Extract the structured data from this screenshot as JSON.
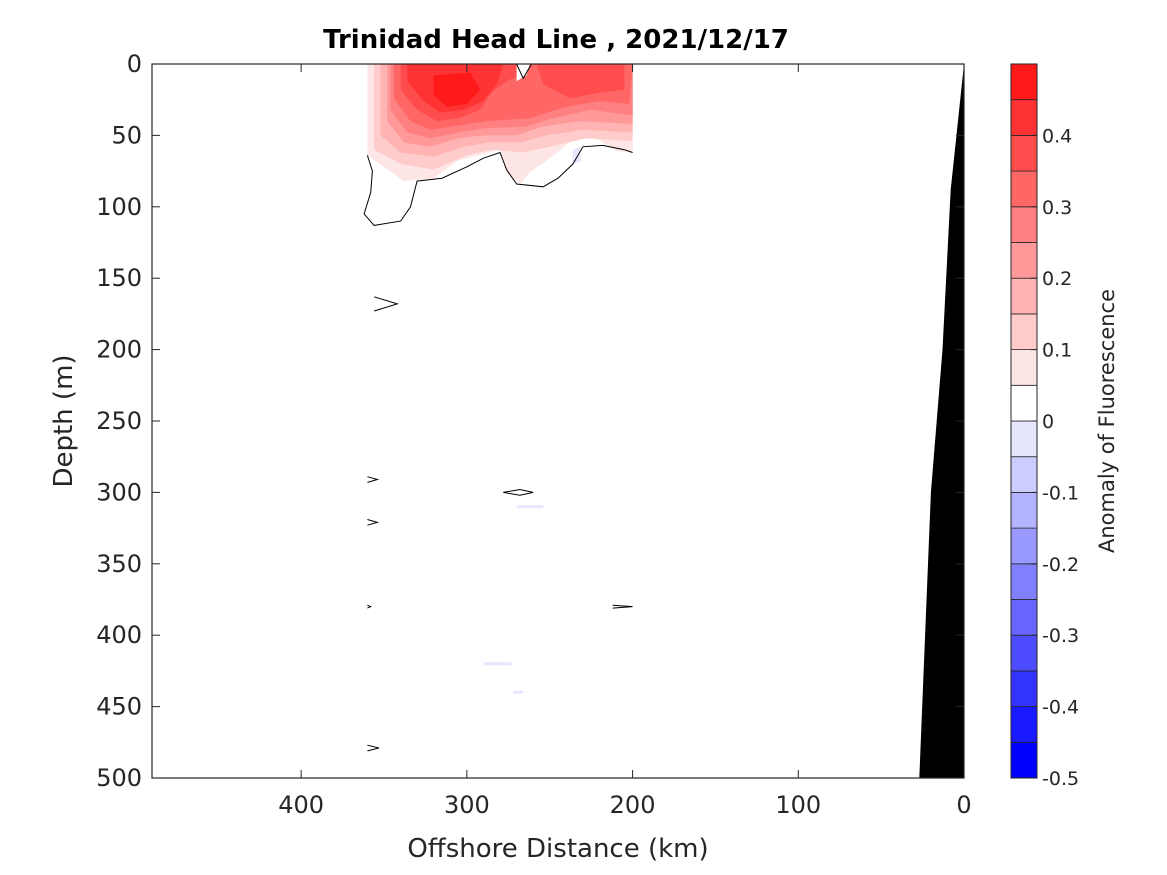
{
  "chart_data": {
    "type": "heatmap",
    "title": "Trinidad Head Line , 2021/12/17",
    "xlabel": "Offshore Distance (km)",
    "ylabel": "Depth (m)",
    "xlim": [
      490,
      0
    ],
    "ylim": [
      500,
      0
    ],
    "x_ticks": [
      400,
      300,
      200,
      100,
      0
    ],
    "y_ticks": [
      0,
      50,
      100,
      150,
      200,
      250,
      300,
      350,
      400,
      450,
      500
    ],
    "data_extent": {
      "x": [
        360,
        200
      ],
      "y": [
        0,
        65
      ]
    },
    "colorbar": {
      "label": "Anomaly of Fluorescence",
      "limits": [
        -0.5,
        0.5
      ],
      "step": 0.05,
      "ticks": [
        -0.5,
        -0.4,
        -0.3,
        -0.2,
        -0.1,
        0,
        0.1,
        0.2,
        0.3,
        0.4
      ],
      "tick_labels": [
        "-0.5",
        "-0.4",
        "-0.3",
        "-0.2",
        "-0.1",
        "0",
        "0.1",
        "0.2",
        "0.3",
        "0.4"
      ],
      "colors": [
        "#0000ff",
        "#1a1aff",
        "#3333ff",
        "#4d4dff",
        "#6666ff",
        "#8080ff",
        "#9999ff",
        "#b3b3ff",
        "#ccccff",
        "#e6e6ff",
        "#ffffff",
        "#ffe6e6",
        "#ffcccc",
        "#ffb3b3",
        "#ff9999",
        "#ff8080",
        "#ff6666",
        "#ff4d4d",
        "#ff3333",
        "#ff1a1a"
      ]
    },
    "anomaly_patches": [
      {
        "level": 0.05,
        "points": [
          [
            360,
            0
          ],
          [
            200,
            0
          ],
          [
            200,
            62
          ],
          [
            210,
            61
          ],
          [
            222,
            52
          ],
          [
            236,
            53
          ],
          [
            250,
            66
          ],
          [
            262,
            76
          ],
          [
            268,
            84
          ],
          [
            276,
            77
          ],
          [
            280,
            60
          ],
          [
            290,
            63
          ],
          [
            306,
            68
          ],
          [
            320,
            80
          ],
          [
            338,
            82
          ],
          [
            360,
            64
          ]
        ]
      },
      {
        "level": 0.1,
        "points": [
          [
            356,
            0
          ],
          [
            200,
            0
          ],
          [
            200,
            54
          ],
          [
            228,
            52
          ],
          [
            250,
            58
          ],
          [
            266,
            62
          ],
          [
            285,
            60
          ],
          [
            300,
            64
          ],
          [
            320,
            74
          ],
          [
            340,
            70
          ],
          [
            356,
            60
          ]
        ]
      },
      {
        "level": 0.15,
        "points": [
          [
            352,
            0
          ],
          [
            200,
            0
          ],
          [
            200,
            48
          ],
          [
            230,
            46
          ],
          [
            252,
            50
          ],
          [
            268,
            55
          ],
          [
            287,
            55
          ],
          [
            302,
            58
          ],
          [
            320,
            65
          ],
          [
            340,
            62
          ],
          [
            352,
            50
          ]
        ]
      },
      {
        "level": 0.2,
        "points": [
          [
            348,
            0
          ],
          [
            200,
            0
          ],
          [
            200,
            42
          ],
          [
            232,
            40
          ],
          [
            255,
            44
          ],
          [
            270,
            50
          ],
          [
            290,
            50
          ],
          [
            305,
            52
          ],
          [
            322,
            58
          ],
          [
            338,
            55
          ],
          [
            348,
            40
          ]
        ]
      },
      {
        "level": 0.25,
        "points": [
          [
            346,
            0
          ],
          [
            200,
            0
          ],
          [
            200,
            36
          ],
          [
            225,
            32
          ],
          [
            248,
            38
          ],
          [
            265,
            44
          ],
          [
            290,
            45
          ],
          [
            305,
            48
          ],
          [
            322,
            52
          ],
          [
            336,
            48
          ],
          [
            346,
            32
          ]
        ]
      },
      {
        "level": 0.3,
        "points": [
          [
            344,
            0
          ],
          [
            200,
            0
          ],
          [
            202,
            28
          ],
          [
            220,
            26
          ],
          [
            240,
            30
          ],
          [
            262,
            38
          ],
          [
            288,
            40
          ],
          [
            305,
            43
          ],
          [
            322,
            46
          ],
          [
            334,
            40
          ],
          [
            344,
            24
          ]
        ]
      },
      {
        "level": 0.35,
        "points": [
          [
            340,
            0
          ],
          [
            266,
            0
          ],
          [
            268,
            8
          ],
          [
            276,
            12
          ],
          [
            285,
            20
          ],
          [
            292,
            32
          ],
          [
            305,
            38
          ],
          [
            318,
            40
          ],
          [
            330,
            32
          ],
          [
            340,
            18
          ]
        ]
      },
      {
        "level": 0.35,
        "points": [
          [
            258,
            0
          ],
          [
            205,
            0
          ],
          [
            205,
            18
          ],
          [
            220,
            20
          ],
          [
            238,
            24
          ],
          [
            254,
            14
          ]
        ]
      },
      {
        "level": 0.4,
        "points": [
          [
            336,
            0
          ],
          [
            278,
            0
          ],
          [
            282,
            14
          ],
          [
            290,
            26
          ],
          [
            302,
            32
          ],
          [
            316,
            34
          ],
          [
            326,
            26
          ],
          [
            336,
            12
          ]
        ]
      },
      {
        "level": 0.45,
        "points": [
          [
            320,
            8
          ],
          [
            298,
            6
          ],
          [
            292,
            18
          ],
          [
            300,
            28
          ],
          [
            312,
            30
          ],
          [
            320,
            22
          ]
        ]
      },
      {
        "level": 0.0,
        "points": [
          [
            270,
            0
          ],
          [
            262,
            0
          ],
          [
            264,
            8
          ],
          [
            270,
            12
          ]
        ]
      },
      {
        "level": -0.05,
        "points": [
          [
            236,
            60
          ],
          [
            232,
            58
          ],
          [
            231,
            68
          ],
          [
            236,
            70
          ]
        ]
      },
      {
        "level": -0.05,
        "points": [
          [
            270,
            309
          ],
          [
            254,
            309
          ],
          [
            254,
            311
          ],
          [
            270,
            311
          ]
        ]
      },
      {
        "level": -0.05,
        "points": [
          [
            290,
            419
          ],
          [
            273,
            419
          ],
          [
            273,
            421
          ],
          [
            290,
            421
          ]
        ]
      },
      {
        "level": -0.05,
        "points": [
          [
            272,
            439
          ],
          [
            266,
            439
          ],
          [
            266,
            441
          ],
          [
            272,
            441
          ]
        ]
      }
    ],
    "zero_contours": [
      {
        "closed": false,
        "points": [
          [
            360,
            64
          ],
          [
            357,
            75
          ],
          [
            358,
            90
          ],
          [
            362,
            105
          ],
          [
            356,
            113
          ],
          [
            340,
            110
          ],
          [
            334,
            100
          ],
          [
            330,
            82
          ],
          [
            315,
            80
          ],
          [
            300,
            72
          ],
          [
            290,
            66
          ],
          [
            280,
            62
          ],
          [
            276,
            74
          ],
          [
            270,
            84
          ],
          [
            254,
            86
          ],
          [
            245,
            80
          ],
          [
            236,
            70
          ],
          [
            230,
            58
          ],
          [
            218,
            57
          ],
          [
            205,
            60
          ],
          [
            200,
            62
          ]
        ]
      },
      {
        "closed": false,
        "points": [
          [
            270,
            0
          ],
          [
            266,
            10
          ],
          [
            261,
            0
          ]
        ]
      },
      {
        "closed": false,
        "points": [
          [
            356,
            163
          ],
          [
            342,
            168
          ],
          [
            356,
            173
          ]
        ]
      },
      {
        "closed": false,
        "points": [
          [
            360,
            289
          ],
          [
            354,
            291
          ],
          [
            360,
            293
          ]
        ]
      },
      {
        "closed": true,
        "points": [
          [
            278,
            300
          ],
          [
            268,
            298
          ],
          [
            260,
            300
          ],
          [
            268,
            302
          ]
        ]
      },
      {
        "closed": false,
        "points": [
          [
            360,
            319
          ],
          [
            354,
            321
          ],
          [
            360,
            323
          ]
        ]
      },
      {
        "closed": false,
        "points": [
          [
            360,
            379
          ],
          [
            358,
            380
          ],
          [
            360,
            381
          ]
        ]
      },
      {
        "closed": false,
        "points": [
          [
            212,
            379
          ],
          [
            200,
            380
          ],
          [
            212,
            381
          ]
        ]
      },
      {
        "closed": false,
        "points": [
          [
            360,
            477
          ],
          [
            353,
            479
          ],
          [
            360,
            481
          ]
        ]
      }
    ],
    "bathymetry": [
      [
        0,
        0
      ],
      [
        8,
        88
      ],
      [
        13,
        200
      ],
      [
        20,
        300
      ],
      [
        27,
        500
      ],
      [
        0,
        500
      ]
    ]
  }
}
